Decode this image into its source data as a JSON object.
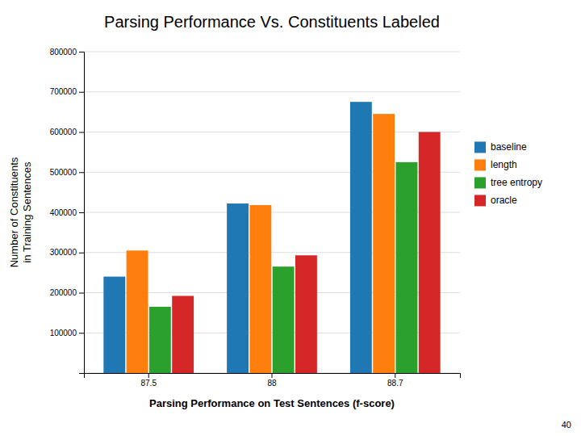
{
  "chart_data": {
    "type": "bar",
    "title": "Parsing Performance Vs. Constituents Labeled",
    "xlabel": "Parsing Performance on Test Sentences (f-score)",
    "ylabel": "Number of Constituents\nin Training Sentences",
    "categories": [
      "87.5",
      "88",
      "88.7"
    ],
    "series": [
      {
        "name": "baseline",
        "values": [
          240000,
          422000,
          675000
        ]
      },
      {
        "name": "length",
        "values": [
          305000,
          418000,
          645000
        ]
      },
      {
        "name": "tree entropy",
        "values": [
          165000,
          265000,
          525000
        ]
      },
      {
        "name": "oracle",
        "values": [
          192000,
          293000,
          600000
        ]
      }
    ],
    "ylim": [
      0,
      800000
    ],
    "yticks": [
      {
        "value": 0,
        "label": null
      },
      100000,
      200000,
      300000,
      400000,
      500000,
      600000,
      700000,
      800000
    ],
    "grid": true,
    "legend": "right",
    "annotations": [
      "40"
    ]
  }
}
